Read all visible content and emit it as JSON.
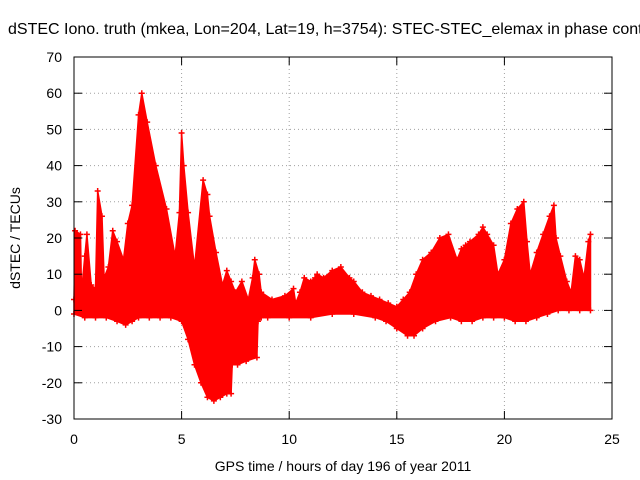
{
  "chart_data": {
    "type": "area",
    "title": "dSTEC Iono. truth (mkea, Lon=204, Lat=19, h=3754): STEC-STEC_elemax in phase cont",
    "xlabel": "GPS time / hours of day 196 of year 2011",
    "ylabel": "dSTEC  / TECUs",
    "xlim": [
      0,
      25
    ],
    "ylim": [
      -30,
      70
    ],
    "xticks": [
      0,
      5,
      10,
      15,
      20,
      25
    ],
    "yticks": [
      -30,
      -20,
      -10,
      0,
      10,
      20,
      30,
      40,
      50,
      60,
      70
    ],
    "xtick_labels": [
      "0",
      "5",
      "10",
      "15",
      "20",
      "25"
    ],
    "ytick_labels": [
      "-30",
      "-20",
      "-10",
      "0",
      "10",
      "20",
      "30",
      "40",
      "50",
      "60",
      "70"
    ],
    "grid": true,
    "series_color": "#ff0000",
    "upper": {
      "x": [
        0,
        0.05,
        0.3,
        0.35,
        0.5,
        0.6,
        0.8,
        1.0,
        1.1,
        1.3,
        1.4,
        1.6,
        1.8,
        2.0,
        2.3,
        2.5,
        2.7,
        3.0,
        3.15,
        3.4,
        3.8,
        4.3,
        4.7,
        4.9,
        5.0,
        5.1,
        5.3,
        5.6,
        6.0,
        6.2,
        6.3,
        6.6,
        6.9,
        7.1,
        7.3,
        7.5,
        7.8,
        8.1,
        8.3,
        8.4,
        8.6,
        8.7,
        9.2,
        9.8,
        10.2,
        10.3,
        10.5,
        10.7,
        11.0,
        11.2,
        11.3,
        11.6,
        12.0,
        12.4,
        12.8,
        13.0,
        13.4,
        13.8,
        14.2,
        14.6,
        15.0,
        15.3,
        15.6,
        15.9,
        16.2,
        16.6,
        17.0,
        17.4,
        17.8,
        18.0,
        18.2,
        18.4,
        18.8,
        19.0,
        19.2,
        19.5,
        19.7,
        20.0,
        20.3,
        20.6,
        20.9,
        21.05,
        21.2,
        21.5,
        21.8,
        22.1,
        22.3,
        22.4,
        22.6,
        22.9,
        23.1,
        23.3,
        23.5,
        23.7,
        23.9,
        24.0
      ],
      "y": [
        3,
        22,
        21,
        5,
        15,
        21,
        7,
        6,
        33,
        26,
        9,
        12,
        22,
        19,
        14,
        24,
        29,
        54,
        60,
        52,
        40,
        28,
        15,
        27,
        49,
        40,
        27,
        12,
        36,
        32,
        26,
        16,
        7,
        11,
        8,
        5,
        8,
        3,
        9,
        14,
        10,
        5,
        3,
        4,
        6,
        2,
        5,
        9,
        8,
        9,
        10,
        9,
        11,
        12,
        9,
        8,
        5,
        4,
        3,
        2,
        1,
        3,
        5,
        10,
        14,
        16,
        20,
        21,
        14,
        17,
        18,
        19,
        21,
        23,
        21,
        18,
        10,
        14,
        24,
        28,
        30,
        19,
        10,
        16,
        21,
        26,
        29,
        20,
        15,
        8,
        5,
        15,
        14,
        9,
        19,
        21
      ]
    },
    "lower": {
      "x": [
        0,
        0.5,
        1.0,
        1.5,
        2.0,
        2.4,
        2.7,
        3.0,
        3.5,
        4.0,
        4.5,
        5.0,
        5.3,
        5.6,
        5.9,
        6.2,
        6.5,
        6.8,
        7.1,
        7.3,
        7.35,
        7.6,
        8.0,
        8.5,
        8.55,
        8.7,
        9.0,
        10.0,
        11.0,
        12.0,
        13.0,
        14.0,
        14.5,
        15.0,
        15.5,
        15.8,
        16.2,
        16.8,
        17.5,
        18.0,
        18.5,
        19.0,
        19.5,
        20.0,
        20.5,
        21.0,
        21.5,
        22.0,
        22.5,
        23.0,
        23.5,
        24.0
      ],
      "y": [
        -1,
        -2,
        -2,
        -2,
        -3,
        -4,
        -3,
        -2,
        -2,
        -2,
        -2,
        -3,
        -8,
        -15,
        -20,
        -24,
        -25,
        -24,
        -23,
        -23,
        -15,
        -15,
        -14,
        -13,
        -3,
        -2,
        -2,
        -2,
        -2,
        -1,
        -1,
        -2,
        -3,
        -5,
        -7,
        -7,
        -5,
        -3,
        -2,
        -3,
        -3,
        -2,
        -2,
        -2,
        -3,
        -3,
        -2,
        -1,
        0,
        0,
        0,
        0
      ]
    }
  }
}
